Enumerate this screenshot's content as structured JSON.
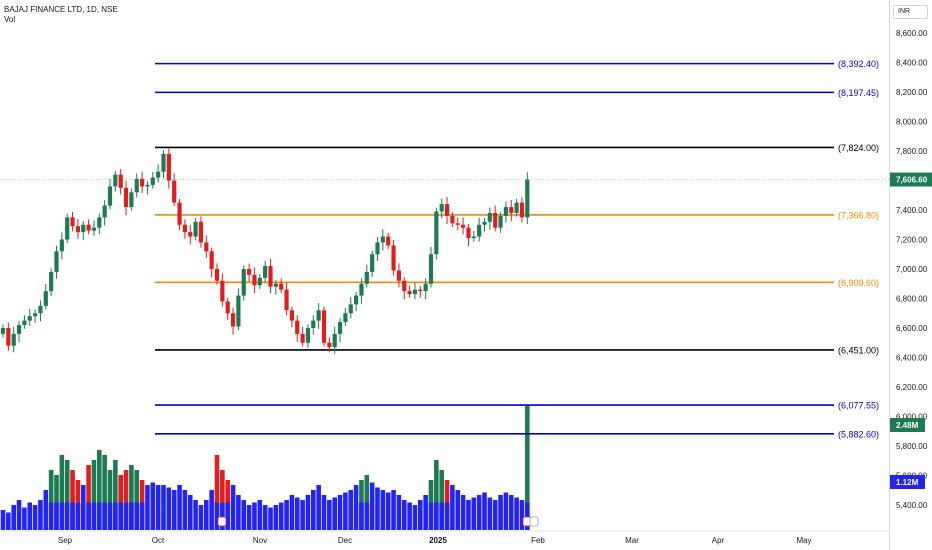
{
  "header": {
    "symbol_line": "BAJAJ FINANCE LTD, 1D, NSE",
    "indicator_label": "Vol",
    "currency": "INR"
  },
  "colors": {
    "up": "#1e7a52",
    "down": "#e01e1e",
    "volume_up": "#1e7a52",
    "volume_down": "#e01e1e",
    "volume_base": "#2424f0",
    "level_blue": "#0000cc",
    "level_black": "#000000",
    "level_orange": "#f08c00",
    "price_badge": "#1e7a52",
    "axis_text": "#131722"
  },
  "price_axis": {
    "ticks": [
      "8,600.00",
      "8,400.00",
      "8,200.00",
      "8,000.00",
      "7,800.00",
      "7,600.00",
      "7,400.00",
      "7,200.00",
      "7,000.00",
      "6,800.00",
      "6,600.00",
      "6,400.00",
      "6,200.00",
      "6,000.00",
      "5,800.00",
      "5,600.00",
      "5,400.00"
    ],
    "current_price": "7,606.60",
    "volume_current": "2.48M",
    "volume_average": "1.12M"
  },
  "time_axis": {
    "labels": [
      "Sep",
      "Oct",
      "Nov",
      "Dec",
      "2025",
      "Feb",
      "Mar",
      "Apr",
      "May"
    ]
  },
  "levels": [
    {
      "label": "(8,392.40)",
      "value": 8392.4,
      "color": "blue"
    },
    {
      "label": "(8,197.45)",
      "value": 8197.45,
      "color": "blue"
    },
    {
      "label": "(7,824.00)",
      "value": 7824.0,
      "color": "black"
    },
    {
      "label": "(7,366.80)",
      "value": 7366.8,
      "color": "orange"
    },
    {
      "label": "(6,909.60)",
      "value": 6909.6,
      "color": "orange"
    },
    {
      "label": "(6,451.00)",
      "value": 6451.0,
      "color": "black"
    },
    {
      "label": "(6,077.55)",
      "value": 6077.55,
      "color": "blue"
    },
    {
      "label": "(5,882.60)",
      "value": 5882.6,
      "color": "blue"
    }
  ],
  "chart_data": {
    "type": "candlestick",
    "title": "BAJAJ FINANCE LTD, 1D, NSE",
    "ylim": [
      5350,
      8750
    ],
    "closes": [
      6600,
      6480,
      6560,
      6620,
      6650,
      6680,
      6700,
      6750,
      6850,
      6980,
      7120,
      7200,
      7350,
      7290,
      7250,
      7300,
      7260,
      7280,
      7350,
      7430,
      7560,
      7640,
      7550,
      7420,
      7520,
      7610,
      7560,
      7570,
      7620,
      7660,
      7780,
      7600,
      7450,
      7300,
      7250,
      7220,
      7320,
      7180,
      7120,
      7000,
      6920,
      6780,
      6700,
      6610,
      6820,
      7000,
      6960,
      6890,
      6940,
      7020,
      6880,
      6900,
      6860,
      6720,
      6650,
      6560,
      6500,
      6600,
      6650,
      6720,
      6500,
      6470,
      6560,
      6640,
      6700,
      6760,
      6820,
      6900,
      6980,
      7100,
      7180,
      7220,
      7160,
      6990,
      6920,
      6850,
      6830,
      6860,
      6850,
      6900,
      7100,
      7390,
      7440,
      7360,
      7310,
      7300,
      7280,
      7210,
      7220,
      7300,
      7320,
      7380,
      7280,
      7360,
      7420,
      7380,
      7450,
      7350,
      7606.6
    ],
    "volume_values_millions": [
      0.4,
      0.35,
      0.5,
      0.6,
      0.45,
      0.55,
      0.5,
      0.6,
      0.8,
      1.2,
      1.1,
      1.5,
      1.4,
      1.2,
      1.0,
      0.9,
      1.3,
      1.4,
      1.6,
      1.5,
      1.2,
      1.4,
      1.1,
      1.2,
      1.3,
      1.2,
      1.0,
      0.9,
      0.95,
      0.9,
      0.9,
      0.85,
      0.8,
      0.9,
      0.8,
      0.7,
      0.6,
      0.5,
      0.6,
      0.8,
      1.5,
      1.2,
      1.0,
      0.9,
      0.7,
      0.6,
      0.5,
      0.55,
      0.6,
      0.5,
      0.45,
      0.5,
      0.55,
      0.6,
      0.7,
      0.65,
      0.6,
      0.7,
      0.8,
      0.9,
      0.7,
      0.6,
      0.65,
      0.7,
      0.75,
      0.8,
      0.9,
      1.0,
      1.1,
      0.95,
      0.85,
      0.8,
      0.75,
      0.8,
      0.7,
      0.6,
      0.55,
      0.5,
      0.6,
      0.7,
      1.0,
      1.4,
      1.2,
      1.0,
      0.9,
      0.8,
      0.7,
      0.6,
      0.65,
      0.7,
      0.75,
      0.65,
      0.6,
      0.7,
      0.75,
      0.7,
      0.65,
      0.6,
      2.48
    ],
    "x_labels": [
      "Sep",
      "Oct",
      "Nov",
      "Dec",
      "2025",
      "Feb",
      "Mar",
      "Apr",
      "May"
    ]
  }
}
